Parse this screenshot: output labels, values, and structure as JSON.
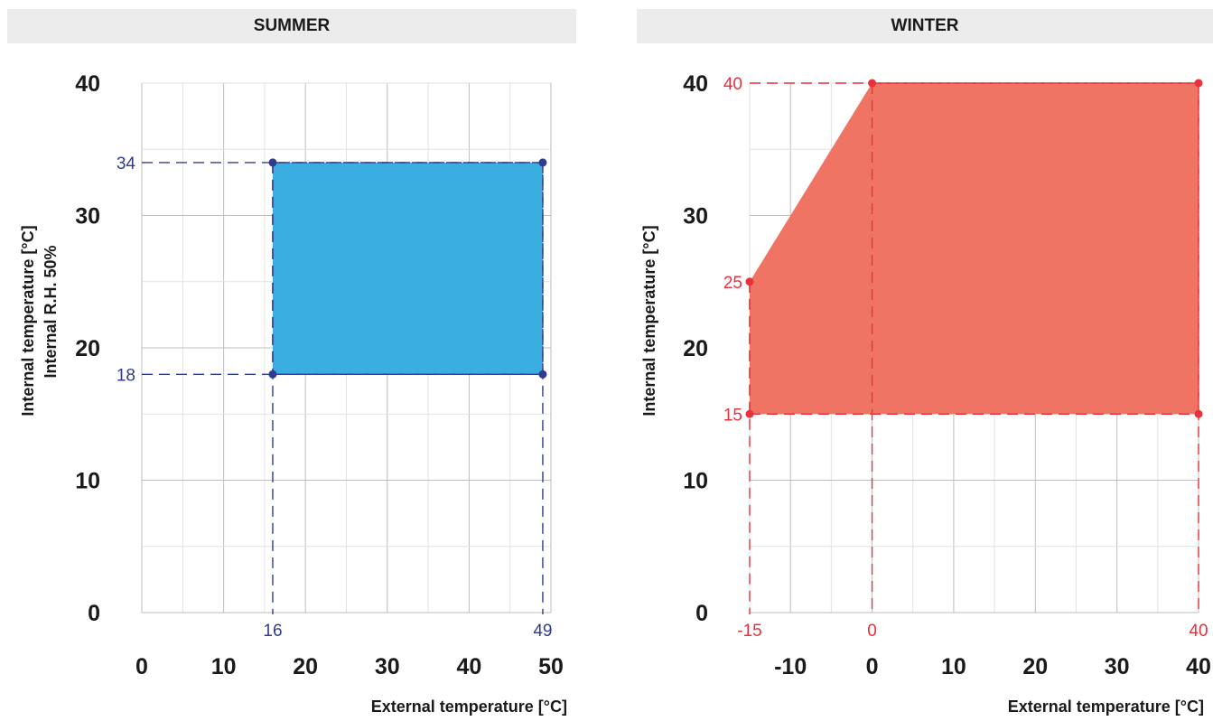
{
  "panels": {
    "summer_title": "SUMMER",
    "winter_title": "WINTER"
  },
  "chart_data": [
    {
      "type": "area",
      "title": "SUMMER",
      "xlabel": "External temperature [°C]",
      "ylabel": "Internal temperature [°C]",
      "ylabel2": "Internal R.H. 50%",
      "xlim": [
        0,
        50
      ],
      "ylim": [
        0,
        40
      ],
      "x_ticks": [
        0,
        10,
        20,
        30,
        40,
        50
      ],
      "y_ticks": [
        0,
        10,
        20,
        30,
        40
      ],
      "grid": true,
      "color": "#3aaee0",
      "marker_color": "#303d8f",
      "region": [
        [
          16,
          18
        ],
        [
          49,
          18
        ],
        [
          49,
          34
        ],
        [
          16,
          34
        ]
      ],
      "x_marks": [
        16,
        49
      ],
      "y_marks": [
        18,
        34
      ],
      "x_mark_labels": [
        "16",
        "49"
      ],
      "y_mark_labels": [
        "18",
        "34"
      ]
    },
    {
      "type": "area",
      "title": "WINTER",
      "xlabel": "External temperature [°C]",
      "ylabel": "Internal temperature [°C]",
      "xlim": [
        -15,
        40
      ],
      "ylim": [
        0,
        40
      ],
      "x_ticks": [
        -10,
        0,
        10,
        20,
        30,
        40
      ],
      "y_ticks": [
        0,
        10,
        20,
        30,
        40
      ],
      "grid": true,
      "color": "#f0705f",
      "marker_color": "#e8313c",
      "region": [
        [
          -15,
          15
        ],
        [
          40,
          15
        ],
        [
          40,
          40
        ],
        [
          0,
          40
        ],
        [
          -15,
          25
        ]
      ],
      "x_marks": [
        -15,
        0,
        40
      ],
      "y_marks": [
        15,
        25,
        40
      ],
      "x_mark_labels": [
        "-15",
        "0",
        "40"
      ],
      "y_mark_labels": [
        "15",
        "25",
        "40"
      ]
    }
  ]
}
